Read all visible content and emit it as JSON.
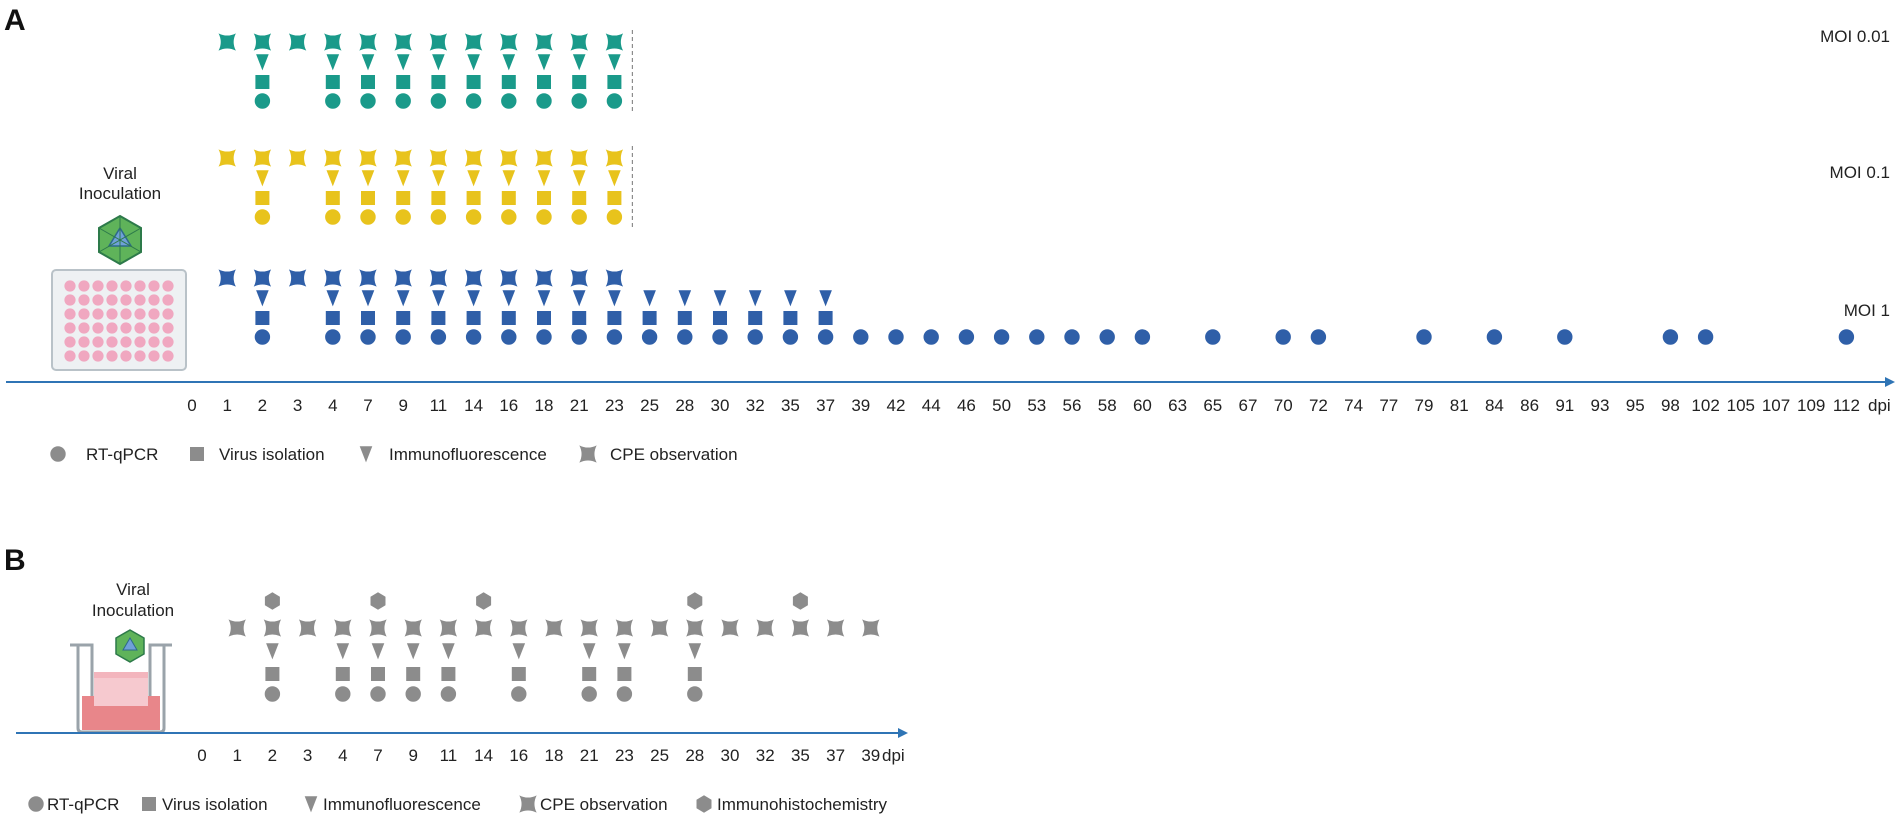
{
  "colors": {
    "axis": "#2f74b5",
    "moi_001": "#1a9a8a",
    "moi_01": "#e8c31c",
    "moi_1": "#2f5fa8",
    "panel_b": "#8c8c8c",
    "legend": "#8c8c8c",
    "plate_well": "#f0a7c0",
    "insert_medium": "#e8868a",
    "virus_green": "#6bbf5a"
  },
  "panel_a": {
    "label": "A",
    "inoculation_label": [
      "Viral",
      "Inoculation"
    ],
    "axis_unit": "dpi",
    "ticks": [
      "0",
      "1",
      "2",
      "3",
      "4",
      "7",
      "9",
      "11",
      "14",
      "16",
      "18",
      "21",
      "23",
      "25",
      "28",
      "30",
      "32",
      "35",
      "37",
      "39",
      "42",
      "44",
      "46",
      "50",
      "53",
      "56",
      "58",
      "60",
      "63",
      "65",
      "67",
      "70",
      "72",
      "74",
      "77",
      "79",
      "81",
      "84",
      "86",
      "91",
      "93",
      "95",
      "98",
      "102",
      "105",
      "107",
      "109",
      "112"
    ],
    "rows": [
      {
        "name": "MOI 0.01",
        "color_key": "moi_001",
        "cpe": [
          "1",
          "2",
          "3",
          "4",
          "7",
          "9",
          "11",
          "14",
          "16",
          "18",
          "21",
          "23"
        ],
        "immunofluorescence": [
          "2",
          "4",
          "7",
          "9",
          "11",
          "14",
          "16",
          "18",
          "21",
          "23"
        ],
        "virus_isolation": [
          "2",
          "4",
          "7",
          "9",
          "11",
          "14",
          "16",
          "18",
          "21",
          "23"
        ],
        "rt_qpcr": [
          "2",
          "4",
          "7",
          "9",
          "11",
          "14",
          "16",
          "18",
          "21",
          "23"
        ],
        "end_marker": "23"
      },
      {
        "name": "MOI 0.1",
        "color_key": "moi_01",
        "cpe": [
          "1",
          "2",
          "3",
          "4",
          "7",
          "9",
          "11",
          "14",
          "16",
          "18",
          "21",
          "23"
        ],
        "immunofluorescence": [
          "2",
          "4",
          "7",
          "9",
          "11",
          "14",
          "16",
          "18",
          "21",
          "23"
        ],
        "virus_isolation": [
          "2",
          "4",
          "7",
          "9",
          "11",
          "14",
          "16",
          "18",
          "21",
          "23"
        ],
        "rt_qpcr": [
          "2",
          "4",
          "7",
          "9",
          "11",
          "14",
          "16",
          "18",
          "21",
          "23"
        ],
        "end_marker": "23"
      },
      {
        "name": "MOI 1",
        "color_key": "moi_1",
        "cpe": [
          "1",
          "2",
          "3",
          "4",
          "7",
          "9",
          "11",
          "14",
          "16",
          "18",
          "21",
          "23"
        ],
        "immunofluorescence": [
          "2",
          "4",
          "7",
          "9",
          "11",
          "14",
          "16",
          "18",
          "21",
          "23",
          "25",
          "28",
          "30",
          "32",
          "35",
          "37"
        ],
        "virus_isolation": [
          "2",
          "4",
          "7",
          "9",
          "11",
          "14",
          "16",
          "18",
          "21",
          "23",
          "25",
          "28",
          "30",
          "32",
          "35",
          "37"
        ],
        "rt_qpcr": [
          "2",
          "4",
          "7",
          "9",
          "11",
          "14",
          "16",
          "18",
          "21",
          "23",
          "25",
          "28",
          "30",
          "32",
          "35",
          "37",
          "39",
          "42",
          "44",
          "46",
          "50",
          "53",
          "56",
          "58",
          "60",
          "65",
          "70",
          "72",
          "79",
          "84",
          "91",
          "98",
          "102",
          "112"
        ],
        "end_marker": ""
      }
    ],
    "legend": [
      {
        "shape": "circle",
        "label": "RT-qPCR"
      },
      {
        "shape": "square",
        "label": "Virus isolation"
      },
      {
        "shape": "triangle",
        "label": "Immunofluorescence"
      },
      {
        "shape": "cpe",
        "label": "CPE observation"
      }
    ]
  },
  "panel_b": {
    "label": "B",
    "inoculation_label": [
      "Viral",
      "Inoculation"
    ],
    "axis_unit": "dpi",
    "ticks": [
      "0",
      "1",
      "2",
      "3",
      "4",
      "7",
      "9",
      "11",
      "14",
      "16",
      "18",
      "21",
      "23",
      "25",
      "28",
      "30",
      "32",
      "35",
      "37",
      "39"
    ],
    "immunohistochemistry": [
      "2",
      "7",
      "14",
      "28",
      "35"
    ],
    "cpe": [
      "1",
      "2",
      "3",
      "4",
      "7",
      "9",
      "11",
      "14",
      "16",
      "18",
      "21",
      "23",
      "25",
      "28",
      "30",
      "32",
      "35",
      "37",
      "39"
    ],
    "immunofluorescence": [
      "2",
      "4",
      "7",
      "9",
      "11",
      "16",
      "21",
      "23",
      "28"
    ],
    "virus_isolation": [
      "2",
      "4",
      "7",
      "9",
      "11",
      "16",
      "21",
      "23",
      "28"
    ],
    "rt_qpcr": [
      "2",
      "4",
      "7",
      "9",
      "11",
      "16",
      "21",
      "23",
      "28"
    ],
    "legend": [
      {
        "shape": "circle",
        "label": "RT-qPCR"
      },
      {
        "shape": "square",
        "label": "Virus isolation"
      },
      {
        "shape": "triangle",
        "label": "Immunofluorescence"
      },
      {
        "shape": "cpe",
        "label": "CPE observation"
      },
      {
        "shape": "hexagon",
        "label": "Immunohistochemistry"
      }
    ]
  }
}
